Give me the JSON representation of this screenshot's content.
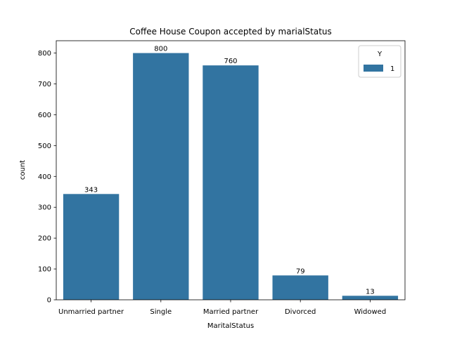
{
  "chart_data": {
    "type": "bar",
    "title": "Coffee House Coupon accepted by marialStatus",
    "xlabel": "MaritalStatus",
    "ylabel": "count",
    "categories": [
      "Unmarried partner",
      "Single",
      "Married partner",
      "Divorced",
      "Widowed"
    ],
    "series": [
      {
        "name": "1",
        "values": [
          343,
          800,
          760,
          79,
          13
        ]
      }
    ],
    "data_labels": [
      "343",
      "800",
      "760",
      "79",
      "13"
    ],
    "yticks": [
      0,
      100,
      200,
      300,
      400,
      500,
      600,
      700,
      800
    ],
    "ylim": [
      0,
      840
    ],
    "grid": false,
    "legend": {
      "title": "Y",
      "placement": "top-right"
    },
    "colors": {
      "bar": "#3274a1"
    }
  }
}
